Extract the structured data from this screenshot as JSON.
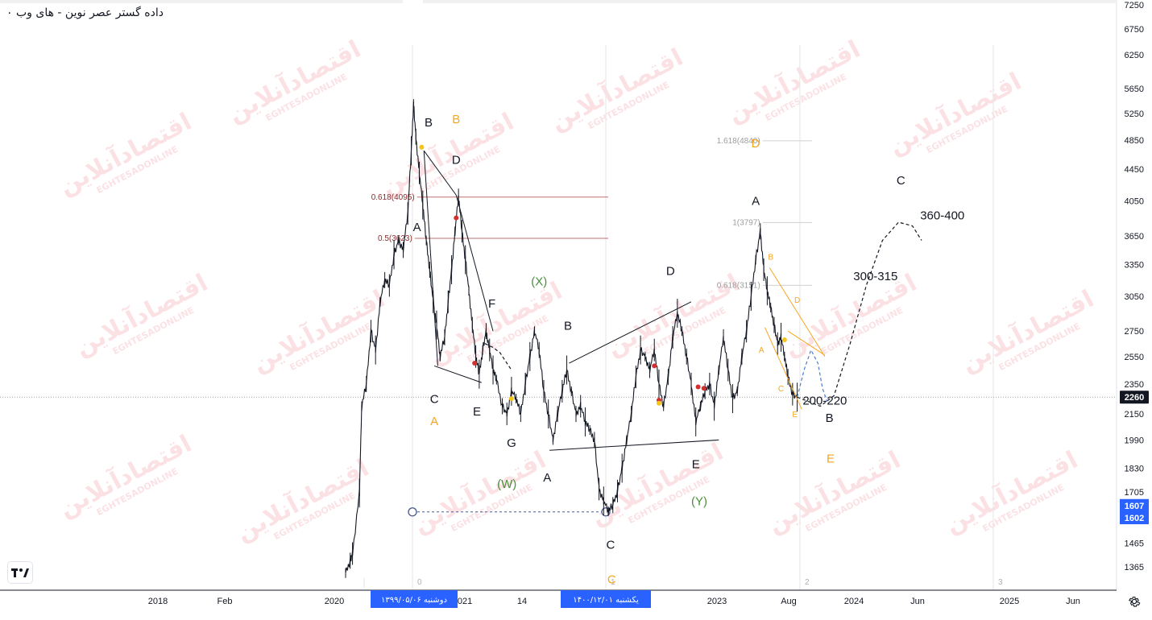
{
  "header": {
    "title": "داده گستر عصر نوین - های وب ۰"
  },
  "watermark": {
    "text": "اقتصادآنلاین",
    "subtext": "EGHTESADONLINE"
  },
  "colors": {
    "black": "#131722",
    "orange": "#f5a623",
    "green": "#4a8f3c",
    "fib": "#8b2b2b",
    "fib_gray": "#9e9e9e",
    "price_tag": "#131722",
    "low_tag": "#2962ff",
    "date_tag": "#2962ff"
  },
  "chart_data": {
    "type": "line",
    "scale": "log",
    "y_ticks": [
      7250,
      6750,
      6250,
      5650,
      5250,
      4850,
      4450,
      4050,
      3650,
      3350,
      3050,
      2750,
      2550,
      2350,
      2150,
      1990,
      1830,
      1705,
      1465,
      1365
    ],
    "x_ticks": [
      "2018",
      "Feb",
      "2020",
      "2021",
      "14",
      "2023",
      "Aug",
      "2024",
      "Jun",
      "2025",
      "Jun"
    ],
    "date_tags": [
      "دوشنبه ۱۳۹۹/۰۵/۰۶",
      "یکشنبه ۱۴۰۰/۱۲/۰۱"
    ],
    "last_price": "2260",
    "low_prices": [
      "1607",
      "1602"
    ],
    "vertical_line_labels": [
      "0",
      "1",
      "2",
      "3"
    ],
    "price_path": [
      [
        0.3,
        1340
      ],
      [
        0.304,
        1390
      ],
      [
        0.306,
        1420
      ],
      [
        0.312,
        1700
      ],
      [
        0.314,
        2200
      ],
      [
        0.318,
        2350
      ],
      [
        0.322,
        2750
      ],
      [
        0.326,
        2600
      ],
      [
        0.33,
        3000
      ],
      [
        0.334,
        3200
      ],
      [
        0.338,
        3150
      ],
      [
        0.342,
        3450
      ],
      [
        0.346,
        3600
      ],
      [
        0.35,
        3500
      ],
      [
        0.354,
        3900
      ],
      [
        0.357,
        4700
      ],
      [
        0.359,
        5400
      ],
      [
        0.361,
        4900
      ],
      [
        0.364,
        4400
      ],
      [
        0.367,
        4000
      ],
      [
        0.37,
        3600
      ],
      [
        0.373,
        3300
      ],
      [
        0.376,
        3000
      ],
      [
        0.379,
        2800
      ],
      [
        0.382,
        2550
      ],
      [
        0.386,
        2700
      ],
      [
        0.389,
        3000
      ],
      [
        0.392,
        3300
      ],
      [
        0.395,
        3700
      ],
      [
        0.398,
        4100
      ],
      [
        0.401,
        3700
      ],
      [
        0.404,
        3400
      ],
      [
        0.407,
        3100
      ],
      [
        0.41,
        2800
      ],
      [
        0.413,
        2550
      ],
      [
        0.416,
        2420
      ],
      [
        0.419,
        2600
      ],
      [
        0.422,
        2750
      ],
      [
        0.425,
        2600
      ],
      [
        0.428,
        2450
      ],
      [
        0.431,
        2380
      ],
      [
        0.436,
        2200
      ],
      [
        0.44,
        2150
      ],
      [
        0.444,
        2300
      ],
      [
        0.448,
        2250
      ],
      [
        0.452,
        2150
      ],
      [
        0.456,
        2350
      ],
      [
        0.46,
        2550
      ],
      [
        0.464,
        2750
      ],
      [
        0.468,
        2600
      ],
      [
        0.472,
        2300
      ],
      [
        0.476,
        2150
      ],
      [
        0.48,
        1990
      ],
      [
        0.484,
        2150
      ],
      [
        0.488,
        2300
      ],
      [
        0.492,
        2450
      ],
      [
        0.496,
        2300
      ],
      [
        0.5,
        2150
      ],
      [
        0.504,
        2200
      ],
      [
        0.508,
        2100
      ],
      [
        0.512,
        2050
      ],
      [
        0.516,
        1990
      ],
      [
        0.52,
        1720
      ],
      [
        0.524,
        1660
      ],
      [
        0.528,
        1610
      ],
      [
        0.532,
        1640
      ],
      [
        0.536,
        1710
      ],
      [
        0.54,
        1830
      ],
      [
        0.544,
        1990
      ],
      [
        0.548,
        2150
      ],
      [
        0.552,
        2400
      ],
      [
        0.556,
        2600
      ],
      [
        0.56,
        2550
      ],
      [
        0.564,
        2450
      ],
      [
        0.568,
        2600
      ],
      [
        0.572,
        2350
      ],
      [
        0.576,
        2200
      ],
      [
        0.58,
        2400
      ],
      [
        0.584,
        2700
      ],
      [
        0.588,
        2900
      ],
      [
        0.592,
        2750
      ],
      [
        0.596,
        2550
      ],
      [
        0.6,
        2350
      ],
      [
        0.604,
        2100
      ],
      [
        0.608,
        2200
      ],
      [
        0.612,
        2300
      ],
      [
        0.616,
        2350
      ],
      [
        0.62,
        2200
      ],
      [
        0.624,
        2450
      ],
      [
        0.628,
        2700
      ],
      [
        0.632,
        2450
      ],
      [
        0.636,
        2250
      ],
      [
        0.64,
        2300
      ],
      [
        0.644,
        2550
      ],
      [
        0.648,
        2750
      ],
      [
        0.652,
        3050
      ],
      [
        0.656,
        3400
      ],
      [
        0.66,
        3700
      ],
      [
        0.663,
        3300
      ],
      [
        0.666,
        3100
      ],
      [
        0.669,
        2950
      ],
      [
        0.672,
        2800
      ],
      [
        0.675,
        2650
      ],
      [
        0.678,
        2700
      ],
      [
        0.681,
        2550
      ],
      [
        0.684,
        2400
      ],
      [
        0.688,
        2280
      ],
      [
        0.692,
        2260
      ]
    ],
    "projections": [
      {
        "style": "dashed-black",
        "points": [
          [
            0.692,
            2260
          ],
          [
            0.712,
            2200
          ],
          [
            0.724,
            2270
          ],
          [
            0.738,
            2650
          ],
          [
            0.752,
            3150
          ],
          [
            0.766,
            3600
          ],
          [
            0.78,
            3800
          ],
          [
            0.792,
            3760
          ],
          [
            0.8,
            3600
          ]
        ]
      },
      {
        "style": "dashed-blue",
        "points": [
          [
            0.692,
            2260
          ],
          [
            0.698,
            2450
          ],
          [
            0.704,
            2600
          ],
          [
            0.71,
            2500
          ],
          [
            0.714,
            2320
          ],
          [
            0.718,
            2230
          ]
        ]
      },
      {
        "style": "dashed-black",
        "points": [
          [
            0.421,
            2650
          ],
          [
            0.428,
            2620
          ],
          [
            0.434,
            2580
          ],
          [
            0.44,
            2500
          ],
          [
            0.444,
            2450
          ]
        ]
      }
    ],
    "fib_levels": [
      {
        "label": "0.618(4095)",
        "value": 4095,
        "x1": 0.362,
        "x2": 0.528,
        "color": "fib"
      },
      {
        "label": "0.5(3623)",
        "value": 3623,
        "x1": 0.36,
        "x2": 0.528,
        "color": "fib"
      },
      {
        "label": "1.618(4840)",
        "value": 4840,
        "x1": 0.662,
        "x2": 0.705,
        "color": "fib_gray"
      },
      {
        "label": "1(3797)",
        "value": 3797,
        "x1": 0.662,
        "x2": 0.705,
        "color": "fib_gray"
      },
      {
        "label": "0.618(3151)",
        "value": 3151,
        "x1": 0.662,
        "x2": 0.705,
        "color": "fib_gray"
      }
    ],
    "wave_labels": [
      {
        "t": "B",
        "x": 0.372,
        "v": 5050,
        "c": "black"
      },
      {
        "t": "B",
        "x": 0.396,
        "v": 5100,
        "c": "orange"
      },
      {
        "t": "D",
        "x": 0.396,
        "v": 4520,
        "c": "black"
      },
      {
        "t": "A",
        "x": 0.362,
        "v": 3700,
        "c": "black"
      },
      {
        "t": "F",
        "x": 0.427,
        "v": 2950,
        "c": "black"
      },
      {
        "t": "C",
        "x": 0.377,
        "v": 2220,
        "c": "black"
      },
      {
        "t": "A",
        "x": 0.377,
        "v": 2080,
        "c": "orange"
      },
      {
        "t": "E",
        "x": 0.414,
        "v": 2140,
        "c": "black"
      },
      {
        "t": "G",
        "x": 0.444,
        "v": 1950,
        "c": "black"
      },
      {
        "t": "(X)",
        "x": 0.468,
        "v": 3150,
        "c": "green"
      },
      {
        "t": "B",
        "x": 0.493,
        "v": 2760,
        "c": "black"
      },
      {
        "t": "(W)",
        "x": 0.44,
        "v": 1725,
        "c": "green"
      },
      {
        "t": "A",
        "x": 0.475,
        "v": 1760,
        "c": "black"
      },
      {
        "t": "C",
        "x": 0.53,
        "v": 1440,
        "c": "black"
      },
      {
        "t": "C",
        "x": 0.531,
        "v": 1300,
        "c": "orange"
      },
      {
        "t": "D",
        "x": 0.582,
        "v": 3250,
        "c": "black"
      },
      {
        "t": "E",
        "x": 0.604,
        "v": 1830,
        "c": "black"
      },
      {
        "t": "(Y)",
        "x": 0.607,
        "v": 1640,
        "c": "green"
      },
      {
        "t": "D",
        "x": 0.656,
        "v": 4750,
        "c": "orange"
      },
      {
        "t": "A",
        "x": 0.656,
        "v": 4000,
        "c": "black"
      },
      {
        "t": "C",
        "x": 0.782,
        "v": 4250,
        "c": "black"
      },
      {
        "t": "360-400",
        "x": 0.818,
        "v": 3830,
        "c": "black"
      },
      {
        "t": "300-315",
        "x": 0.76,
        "v": 3200,
        "c": "black"
      },
      {
        "t": "200-220",
        "x": 0.716,
        "v": 2210,
        "c": "black"
      },
      {
        "t": "B",
        "x": 0.72,
        "v": 2100,
        "c": "black"
      },
      {
        "t": "E",
        "x": 0.721,
        "v": 1860,
        "c": "orange"
      }
    ],
    "small_labels": [
      {
        "t": "B",
        "x": 0.669,
        "v": 3400
      },
      {
        "t": "D",
        "x": 0.692,
        "v": 2990
      },
      {
        "t": "A",
        "x": 0.661,
        "v": 2580
      },
      {
        "t": "C",
        "x": 0.678,
        "v": 2300
      },
      {
        "t": "E",
        "x": 0.69,
        "v": 2130
      }
    ],
    "dots": [
      {
        "x": 0.366,
        "v": 4750,
        "c": "orange"
      },
      {
        "x": 0.396,
        "v": 3850,
        "c": "red"
      },
      {
        "x": 0.412,
        "v": 2500,
        "c": "red"
      },
      {
        "x": 0.444,
        "v": 2250,
        "c": "orange"
      },
      {
        "x": 0.568,
        "v": 2480,
        "c": "red"
      },
      {
        "x": 0.572,
        "v": 2240,
        "c": "red"
      },
      {
        "x": 0.572,
        "v": 2220,
        "c": "orange"
      },
      {
        "x": 0.606,
        "v": 2330,
        "c": "red"
      },
      {
        "x": 0.611,
        "v": 2320,
        "c": "red"
      },
      {
        "x": 0.681,
        "v": 2680,
        "c": "orange"
      }
    ]
  }
}
